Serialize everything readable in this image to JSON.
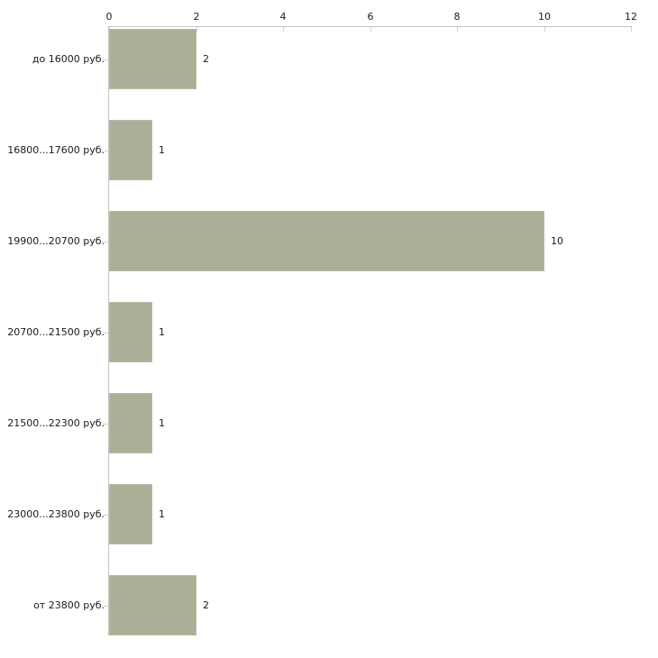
{
  "chart_data": {
    "type": "bar",
    "orientation": "horizontal",
    "title": "",
    "xlabel": "",
    "ylabel": "",
    "categories": [
      "до 16000 руб.",
      "16800...17600 руб.",
      "19900...20700 руб.",
      "20700...21500 руб.",
      "21500...22300 руб.",
      "23000...23800 руб.",
      "от 23800 руб."
    ],
    "values": [
      2,
      1,
      10,
      1,
      1,
      1,
      2
    ],
    "value_labels": [
      "2",
      "1",
      "10",
      "1",
      "1",
      "1",
      "2"
    ],
    "xticks": [
      0,
      2,
      4,
      6,
      8,
      10,
      12
    ],
    "xtick_labels": [
      "0",
      "2",
      "4",
      "6",
      "8",
      "10",
      "12"
    ],
    "xlim": [
      0,
      12
    ],
    "grid": false,
    "legend": false,
    "axis_position": "top",
    "colors": {
      "bar_fill": "#aab098",
      "bar_border": "#b7bba6",
      "axis_line": "#c4c4c6",
      "tick_mark": "#d4d6ba",
      "text": "#1a1a1a",
      "background": "#ffffff"
    }
  }
}
